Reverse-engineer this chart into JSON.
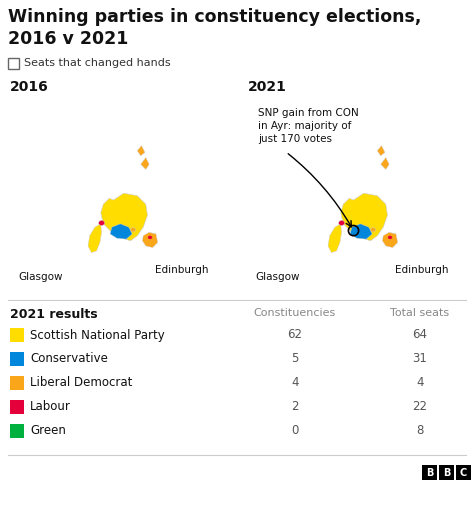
{
  "title": "Winning parties in constituency elections,\n2016 v 2021",
  "subtitle": "Seats that changed hands",
  "bg_color": "#ffffff",
  "title_color": "#111111",
  "label_2016": "2016",
  "label_2021": "2021",
  "annotation": "SNP gain from CON\nin Ayr: majority of\njust 170 votes",
  "glasgow_label": "Glasgow",
  "edinburgh_label": "Edinburgh",
  "table_header_results": "2021 results",
  "table_header_constituencies": "Constituencies",
  "table_header_total": "Total seats",
  "parties": [
    {
      "name": "Scottish National Party",
      "color": "#FFDD00",
      "constituencies": "62",
      "total": "64"
    },
    {
      "name": "Conservative",
      "color": "#0087DC",
      "constituencies": "5",
      "total": "31"
    },
    {
      "name": "Liberal Democrat",
      "color": "#FAA61A",
      "constituencies": "4",
      "total": "4"
    },
    {
      "name": "Labour",
      "color": "#E4003B",
      "constituencies": "2",
      "total": "22"
    },
    {
      "name": "Green",
      "color": "#00B140",
      "constituencies": "0",
      "total": "8"
    }
  ],
  "bbc_logo_color": "#000000"
}
